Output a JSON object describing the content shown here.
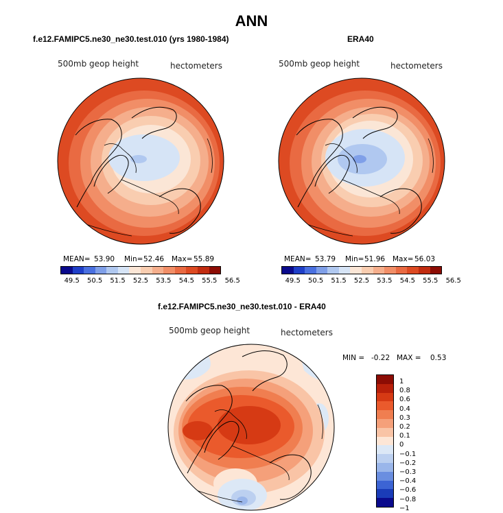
{
  "title": "ANN",
  "panels": [
    {
      "title": "f.e12.FAMIPC5.ne30_ne30.test.010 (yrs 1980-1984)",
      "variable": "500mb geop height",
      "units": "hectometers",
      "mean_label": "MEAN=",
      "mean": "53.90",
      "min_label": "Min=",
      "min": "52.46",
      "max_label": "Max=",
      "max": "55.89",
      "colorbar_ticks": [
        "49.5",
        "50.5",
        "51.5",
        "52.5",
        "53.5",
        "54.5",
        "55.5",
        "56.5"
      ]
    },
    {
      "title": "ERA40",
      "variable": "500mb geop height",
      "units": "hectometers",
      "mean_label": "MEAN=",
      "mean": "53.79",
      "min_label": "Min=",
      "min": "51.96",
      "max_label": "Max=",
      "max": "56.03",
      "colorbar_ticks": [
        "49.5",
        "50.5",
        "51.5",
        "52.5",
        "53.5",
        "54.5",
        "55.5",
        "56.5"
      ]
    }
  ],
  "diff": {
    "title": "f.e12.FAMIPC5.ne30_ne30.test.010 - ERA40",
    "variable": "500mb geop height",
    "units": "hectometers",
    "min_label": "MIN =",
    "min": "-0.22",
    "max_label": "MAX =",
    "max": "0.53",
    "colorbar_labels": [
      "1",
      "0.8",
      "0.6",
      "0.4",
      "0.3",
      "0.2",
      "0.1",
      "0",
      "−0.1",
      "−0.2",
      "−0.3",
      "−0.4",
      "−0.6",
      "−0.8",
      "−1"
    ]
  },
  "colors": {
    "abs_scale": [
      "#0a0a8c",
      "#1f3fc8",
      "#4a70e0",
      "#7f9fe8",
      "#b0c8f0",
      "#d6e4f6",
      "#fbe6d6",
      "#f9cdb0",
      "#f5ae8c",
      "#f18e67",
      "#e96a42",
      "#dd4a22",
      "#c12c10",
      "#8c0c04"
    ],
    "diff_scale": [
      "#8c0c04",
      "#b8200a",
      "#d63a14",
      "#ea5a2c",
      "#f07e50",
      "#f5a07a",
      "#f9c4a6",
      "#fde6d6",
      "#dce8f6",
      "#bcd0f0",
      "#9ab6ea",
      "#6a8ee0",
      "#3c64d4",
      "#1a3cb8",
      "#0a0a8c"
    ]
  }
}
